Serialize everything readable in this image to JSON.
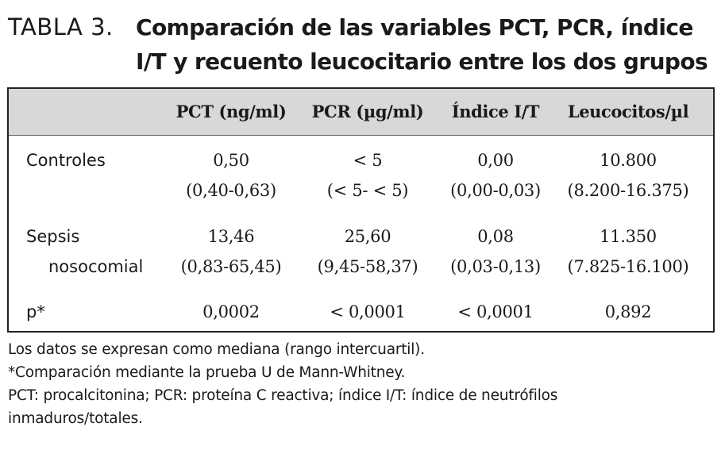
{
  "title": {
    "prefix": "TABLA 3.",
    "line1": "Comparación de las variables PCT, PCR, índice",
    "line2": "I/T y recuento leucocitario entre los dos grupos"
  },
  "table": {
    "headers": [
      "",
      "PCT (ng/ml)",
      "PCR (µg/ml)",
      "Índice I/T",
      "Leucocitos/µl"
    ],
    "rows": [
      {
        "label": [
          "Controles",
          ""
        ],
        "values": [
          [
            "0,50",
            "(0,40-0,63)"
          ],
          [
            "< 5",
            "(< 5- < 5)"
          ],
          [
            "0,00",
            "(0,00-0,03)"
          ],
          [
            "10.800",
            "(8.200-16.375)"
          ]
        ]
      },
      {
        "label": [
          "Sepsis",
          "nosocomial"
        ],
        "values": [
          [
            "13,46",
            "(0,83-65,45)"
          ],
          [
            "25,60",
            "(9,45-58,37)"
          ],
          [
            "0,08",
            "(0,03-0,13)"
          ],
          [
            "11.350",
            "(7.825-16.100)"
          ]
        ]
      },
      {
        "label": [
          "p*",
          ""
        ],
        "values": [
          [
            "0,0002",
            ""
          ],
          [
            "< 0,0001",
            ""
          ],
          [
            "< 0,0001",
            ""
          ],
          [
            "0,892",
            ""
          ]
        ]
      }
    ]
  },
  "notes": [
    "Los datos se expresan como mediana (rango intercuartil).",
    "*Comparación mediante la prueba U de Mann-Whitney.",
    "PCT: procalcitonina; PCR: proteína C reactiva; índice I/T: índice de neutrófilos",
    "inmaduros/totales."
  ],
  "colors": {
    "header_band": "#d8d8d8",
    "border": "#222222",
    "text": "#1a1a1a"
  }
}
